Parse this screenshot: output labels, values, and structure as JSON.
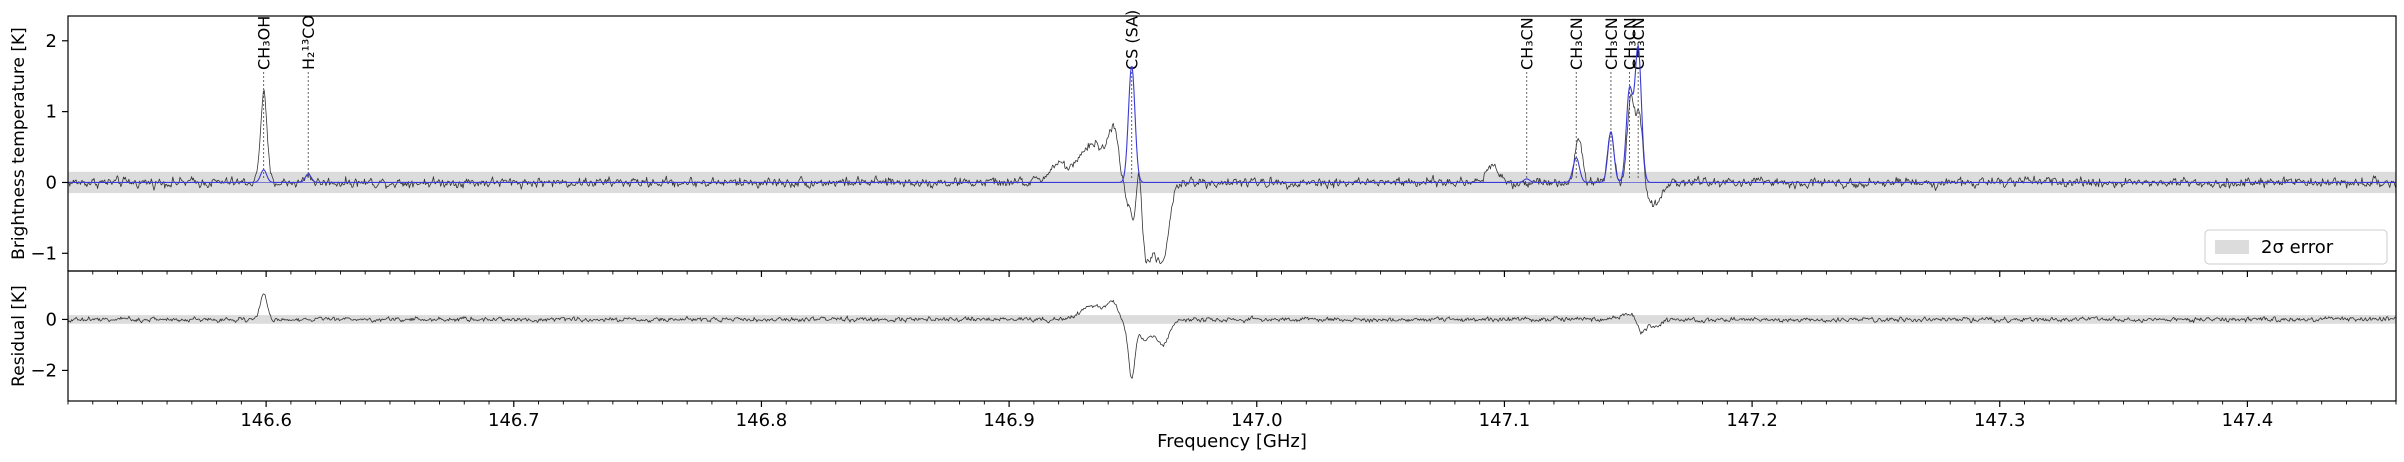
{
  "chart_data": [
    {
      "type": "line",
      "panel": "top",
      "xlabel": "",
      "ylabel": "Brightness temperature [K]",
      "xlim": [
        146.52,
        147.46
      ],
      "ylim": [
        -1.25,
        2.35
      ],
      "yticks": [
        -1,
        0,
        1,
        2
      ],
      "ytick_labels": [
        "−1",
        "0",
        "1",
        "2"
      ],
      "error_band": {
        "label": "2σ error",
        "lower": -0.15,
        "upper": 0.15,
        "color": "#dcdcdc"
      },
      "legend": {
        "location": "lower right",
        "label": "2σ error"
      },
      "series": [
        {
          "role": "observed",
          "color": "#333333",
          "peaks": [
            {
              "x": 146.599,
              "amp": 1.25,
              "width": 0.0013
            },
            {
              "x": 146.617,
              "amp": 0.12,
              "width": 0.0012
            },
            {
              "x": 146.92,
              "amp": 0.25,
              "width": 0.004
            },
            {
              "x": 146.934,
              "amp": 0.55,
              "width": 0.005
            },
            {
              "x": 146.943,
              "amp": 0.75,
              "width": 0.0025
            },
            {
              "x": 146.9455,
              "amp": -0.35,
              "width": 0.0018
            },
            {
              "x": 146.951,
              "amp": -0.6,
              "width": 0.0022
            },
            {
              "x": 146.9525,
              "amp": 1.2,
              "width": 0.0012
            },
            {
              "x": 146.955,
              "amp": -0.75,
              "width": 0.0025
            },
            {
              "x": 146.962,
              "amp": -0.9,
              "width": 0.0025
            },
            {
              "x": 146.958,
              "amp": -0.4,
              "width": 0.004
            },
            {
              "x": 147.095,
              "amp": 0.25,
              "width": 0.0025
            },
            {
              "x": 147.13,
              "amp": 0.65,
              "width": 0.0015
            },
            {
              "x": 147.143,
              "amp": 0.7,
              "width": 0.0013
            },
            {
              "x": 147.151,
              "amp": 1.15,
              "width": 0.0014
            },
            {
              "x": 147.1545,
              "amp": 1.05,
              "width": 0.0014
            },
            {
              "x": 147.16,
              "amp": -0.3,
              "width": 0.003
            }
          ],
          "noise": 0.045
        },
        {
          "role": "model",
          "color": "#3a3ad6",
          "peaks": [
            {
              "x": 146.599,
              "amp": 0.18,
              "width": 0.0012
            },
            {
              "x": 146.617,
              "amp": 0.12,
              "width": 0.0012
            },
            {
              "x": 146.9495,
              "amp": 1.65,
              "width": 0.0013
            },
            {
              "x": 147.109,
              "amp": 0.05,
              "width": 0.0012
            },
            {
              "x": 147.129,
              "amp": 0.35,
              "width": 0.0013
            },
            {
              "x": 147.143,
              "amp": 0.72,
              "width": 0.0012
            },
            {
              "x": 147.1505,
              "amp": 1.3,
              "width": 0.0013
            },
            {
              "x": 147.154,
              "amp": 1.9,
              "width": 0.0013
            }
          ]
        }
      ],
      "annotations": [
        {
          "text": "CH₃OH",
          "x": 146.599
        },
        {
          "text": "H₂¹³CO",
          "x": 146.617
        },
        {
          "text": "CS (SA)",
          "x": 146.9495
        },
        {
          "text": "CH₃CN",
          "x": 147.109
        },
        {
          "text": "CH₃CN",
          "x": 147.129
        },
        {
          "text": "CH₃CN",
          "x": 147.143
        },
        {
          "text": "CH₃CN",
          "x": 147.1505
        },
        {
          "text": "CH₃CN",
          "x": 147.154
        }
      ]
    },
    {
      "type": "line",
      "panel": "bottom",
      "xlabel": "Frequency [GHz]",
      "ylabel": "Residual [K]",
      "xlim": [
        146.52,
        147.46
      ],
      "ylim": [
        -3.2,
        1.9
      ],
      "yticks": [
        -2,
        0
      ],
      "ytick_labels": [
        "−2",
        "0"
      ],
      "xticks": [
        146.6,
        146.7,
        146.8,
        146.9,
        147.0,
        147.1,
        147.2,
        147.3,
        147.4
      ],
      "xtick_labels": [
        "146.6",
        "146.7",
        "146.8",
        "146.9",
        "147.0",
        "147.1",
        "147.2",
        "147.3",
        "147.4"
      ],
      "error_band": {
        "lower": -0.17,
        "upper": 0.17,
        "color": "#dcdcdc"
      },
      "series": [
        {
          "role": "residual",
          "color": "#333333",
          "peaks": [
            {
              "x": 146.599,
              "amp": 1.05,
              "width": 0.0013
            },
            {
              "x": 146.934,
              "amp": 0.55,
              "width": 0.005
            },
            {
              "x": 146.943,
              "amp": 0.7,
              "width": 0.0025
            },
            {
              "x": 146.9455,
              "amp": -0.5,
              "width": 0.0018
            },
            {
              "x": 146.9495,
              "amp": -2.2,
              "width": 0.0013
            },
            {
              "x": 146.955,
              "amp": -0.8,
              "width": 0.0025
            },
            {
              "x": 146.962,
              "amp": -1.0,
              "width": 0.0025
            },
            {
              "x": 147.15,
              "amp": 0.2,
              "width": 0.003
            },
            {
              "x": 147.155,
              "amp": -0.5,
              "width": 0.0015
            },
            {
              "x": 147.16,
              "amp": -0.3,
              "width": 0.003
            }
          ],
          "noise": 0.06
        }
      ]
    }
  ]
}
